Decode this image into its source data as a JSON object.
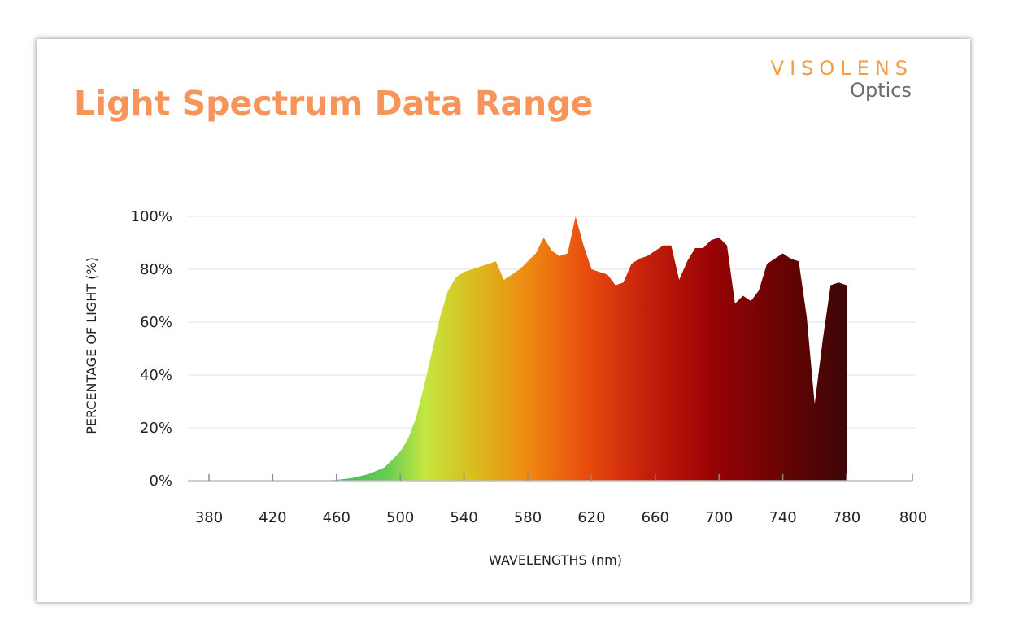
{
  "brand": {
    "line1": "VISOLENS",
    "line2": "Optics"
  },
  "chart_data": {
    "type": "area",
    "title": "Light Spectrum Data Range",
    "xlabel": "WAVELENGTHS (nm)",
    "ylabel": "PERCENTAGE OF LIGHT (%)",
    "xlim": [
      360,
      800
    ],
    "ylim": [
      0,
      100
    ],
    "x_ticks": [
      380,
      420,
      460,
      500,
      540,
      580,
      620,
      660,
      700,
      740,
      780,
      800
    ],
    "y_ticks": [
      "0%",
      "20%",
      "40%",
      "60%",
      "80%",
      "100%"
    ],
    "grid": true,
    "series": [
      {
        "x": [
          450,
          460,
          470,
          480,
          490,
          495,
          500,
          505,
          510,
          515,
          520,
          525,
          530,
          535,
          540,
          545,
          550,
          555,
          560,
          565,
          570,
          575,
          580,
          585,
          590,
          595,
          600,
          605,
          610,
          615,
          620,
          625,
          630,
          635,
          640,
          645,
          650,
          655,
          660,
          665,
          670,
          675,
          680,
          685,
          690,
          695,
          700,
          705,
          710,
          715,
          720,
          725,
          730,
          735,
          740,
          745,
          750,
          755,
          760,
          765,
          770,
          775,
          780
        ],
        "y": [
          0,
          0.3,
          1,
          2.5,
          5,
          8,
          11,
          16,
          24,
          36,
          49,
          62,
          72,
          77,
          79,
          80,
          81,
          82,
          83,
          76,
          78,
          80,
          83,
          86,
          92,
          87,
          85,
          86,
          100,
          89,
          80,
          79,
          78,
          74,
          75,
          82,
          84,
          85,
          87,
          89,
          89,
          76,
          83,
          88,
          88,
          91,
          92,
          89,
          67,
          70,
          68,
          72,
          82,
          84,
          86,
          84,
          83,
          62,
          29,
          53,
          74,
          75,
          74
        ]
      }
    ]
  }
}
